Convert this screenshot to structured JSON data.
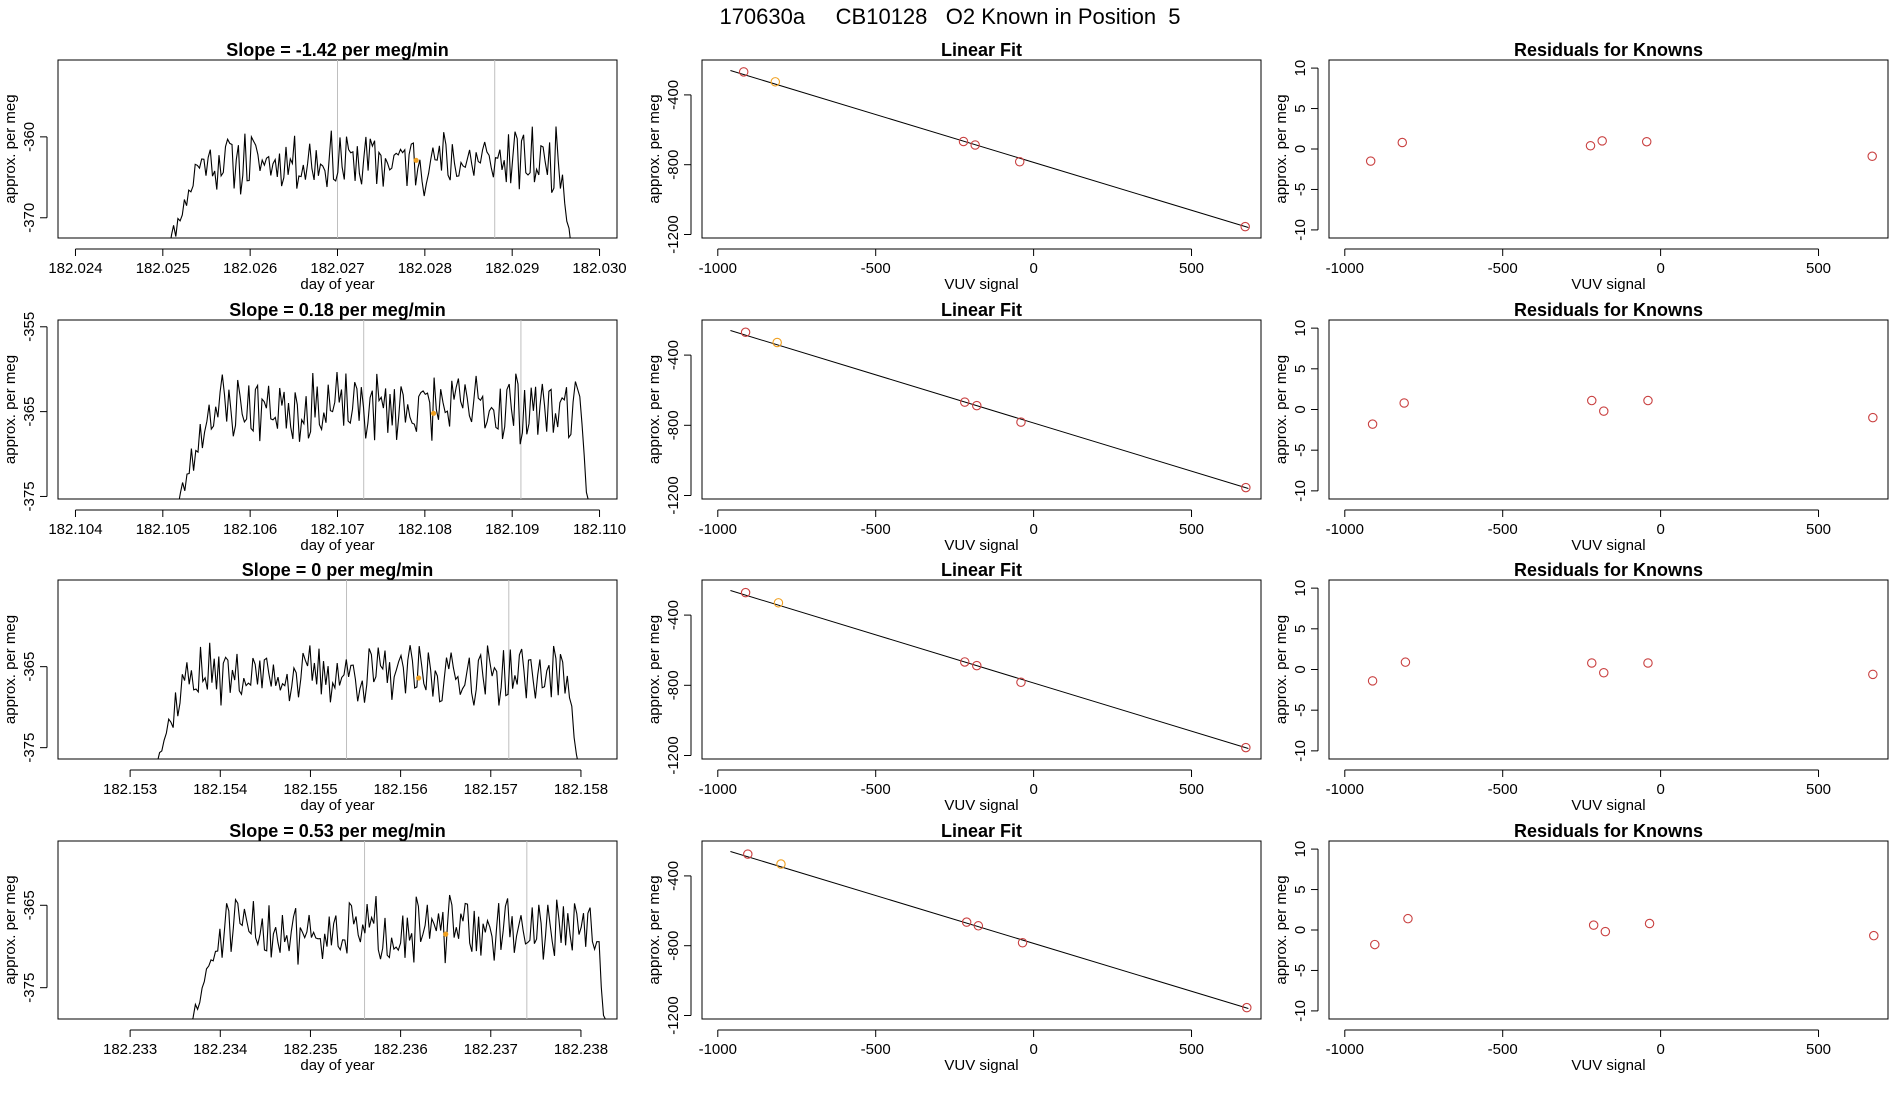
{
  "page": {
    "title": "170630a     CB10128   O2 Known in Position  5"
  },
  "chart_data": [
    {
      "type": "line",
      "title": "Slope =  -1.42  per meg/min",
      "xlabel": "day of year",
      "ylabel": "approx. per meg",
      "xlim": [
        182.0238,
        182.0302
      ],
      "ylim": [
        -372.5,
        -350.5
      ],
      "xticks": [
        182.024,
        182.025,
        182.026,
        182.027,
        182.028,
        182.029,
        182.03
      ],
      "xtick_labels": [
        "182.024",
        "182.025",
        "182.026",
        "182.027",
        "182.028",
        "182.029",
        "182.030"
      ],
      "yticks": [
        -370,
        -360
      ],
      "ytick_labels": [
        "-370",
        "-360"
      ],
      "x_start": 182.025,
      "x_end": 182.0297,
      "y_base": -363.0,
      "noise": 3.2,
      "vlines": [
        182.027,
        182.0288
      ],
      "marker": {
        "x": 182.0279,
        "y": -362.9
      },
      "seed": 11
    },
    {
      "type": "scatter",
      "title": "Linear Fit",
      "xlabel": "VUV signal",
      "ylabel": "approx. per meg",
      "xlim": [
        -1050,
        720
      ],
      "ylim": [
        -1220,
        -200
      ],
      "xticks": [
        -1000,
        -500,
        0,
        500
      ],
      "xtick_labels": [
        "-1000",
        "-500",
        "0",
        "500"
      ],
      "yticks": [
        -400,
        -800,
        -1200
      ],
      "ytick_labels": [
        "-400",
        "-800",
        "-1200"
      ],
      "fit_line": {
        "x": [
          -960,
          680
        ],
        "y": [
          -260,
          -1160
        ]
      },
      "points_x": [
        -918,
        -818,
        -222,
        -185,
        -44,
        670
      ],
      "points_y": [
        -268,
        -325,
        -667,
        -687,
        -783,
        -1155
      ],
      "highlight_index": 1
    },
    {
      "type": "scatter",
      "title": "Residuals for Knowns",
      "xlabel": "VUV signal",
      "ylabel": "approx. per meg",
      "xlim": [
        -1050,
        720
      ],
      "ylim": [
        -11,
        11
      ],
      "xticks": [
        -1000,
        -500,
        0,
        500
      ],
      "xtick_labels": [
        "-1000",
        "-500",
        "0",
        "500"
      ],
      "yticks": [
        10,
        5,
        0,
        -5,
        -10
      ],
      "ytick_labels": [
        "10",
        "5",
        "0",
        "-5",
        "-10"
      ],
      "points_x": [
        -918,
        -818,
        -222,
        -185,
        -44,
        670
      ],
      "points_y": [
        -1.5,
        0.8,
        0.4,
        1.0,
        0.9,
        -0.9
      ]
    },
    {
      "type": "line",
      "title": "Slope =  0.18  per meg/min",
      "xlabel": "day of year",
      "ylabel": "approx. per meg",
      "xlim": [
        182.1038,
        182.1102
      ],
      "ylim": [
        -375.3,
        -354.2
      ],
      "xticks": [
        182.104,
        182.105,
        182.106,
        182.107,
        182.108,
        182.109,
        182.11
      ],
      "xtick_labels": [
        "182.104",
        "182.105",
        "182.106",
        "182.107",
        "182.108",
        "182.109",
        "182.110"
      ],
      "yticks": [
        -375,
        -365,
        -355
      ],
      "ytick_labels": [
        "-375",
        "-365",
        "-355"
      ],
      "x_start": 182.1051,
      "x_end": 182.1099,
      "y_base": -364.5,
      "noise": 3.4,
      "vlines": [
        182.1073,
        182.1091
      ],
      "marker": {
        "x": 182.1081,
        "y": -365.2
      },
      "seed": 23
    },
    {
      "type": "scatter",
      "title": "Linear Fit",
      "xlabel": "VUV signal",
      "ylabel": "approx. per meg",
      "xlim": [
        -1050,
        720
      ],
      "ylim": [
        -1220,
        -200
      ],
      "xticks": [
        -1000,
        -500,
        0,
        500
      ],
      "xtick_labels": [
        "-1000",
        "-500",
        "0",
        "500"
      ],
      "yticks": [
        -400,
        -800,
        -1200
      ],
      "ytick_labels": [
        "-400",
        "-800",
        "-1200"
      ],
      "fit_line": {
        "x": [
          -960,
          680
        ],
        "y": [
          -260,
          -1160
        ]
      },
      "points_x": [
        -912,
        -812,
        -218,
        -180,
        -40,
        672
      ],
      "points_y": [
        -270,
        -328,
        -668,
        -688,
        -782,
        -1155
      ],
      "highlight_index": 1
    },
    {
      "type": "scatter",
      "title": "Residuals for Knowns",
      "xlabel": "VUV signal",
      "ylabel": "approx. per meg",
      "xlim": [
        -1050,
        720
      ],
      "ylim": [
        -11,
        11
      ],
      "xticks": [
        -1000,
        -500,
        0,
        500
      ],
      "xtick_labels": [
        "-1000",
        "-500",
        "0",
        "500"
      ],
      "yticks": [
        10,
        5,
        0,
        -5,
        -10
      ],
      "ytick_labels": [
        "10",
        "5",
        "0",
        "-5",
        "-10"
      ],
      "points_x": [
        -912,
        -812,
        -218,
        -180,
        -40,
        672
      ],
      "points_y": [
        -1.8,
        0.8,
        1.1,
        -0.2,
        1.1,
        -1.0
      ]
    },
    {
      "type": "line",
      "title": "Slope =  0  per meg/min",
      "xlabel": "day of year",
      "ylabel": "approx. per meg",
      "xlim": [
        182.1522,
        182.1584
      ],
      "ylim": [
        -376.4,
        -354.3
      ],
      "xticks": [
        182.153,
        182.154,
        182.155,
        182.156,
        182.157,
        182.158
      ],
      "xtick_labels": [
        "182.153",
        "182.154",
        "182.155",
        "182.156",
        "182.157",
        "182.158"
      ],
      "yticks": [
        -375,
        -365
      ],
      "ytick_labels": [
        "-375",
        "-365"
      ],
      "x_start": 182.1532,
      "x_end": 182.158,
      "y_base": -366.0,
      "noise": 3.0,
      "vlines": [
        182.1554,
        182.1572
      ],
      "marker": {
        "x": 182.1562,
        "y": -366.4
      },
      "seed": 37
    },
    {
      "type": "scatter",
      "title": "Linear Fit",
      "xlabel": "VUV signal",
      "ylabel": "approx. per meg",
      "xlim": [
        -1050,
        720
      ],
      "ylim": [
        -1220,
        -200
      ],
      "xticks": [
        -1000,
        -500,
        0,
        500
      ],
      "xtick_labels": [
        "-1000",
        "-500",
        "0",
        "500"
      ],
      "yticks": [
        -400,
        -800,
        -1200
      ],
      "ytick_labels": [
        "-400",
        "-800",
        "-1200"
      ],
      "fit_line": {
        "x": [
          -960,
          680
        ],
        "y": [
          -260,
          -1160
        ]
      },
      "points_x": [
        -912,
        -808,
        -218,
        -180,
        -40,
        672
      ],
      "points_y": [
        -272,
        -330,
        -667,
        -688,
        -783,
        -1155
      ],
      "highlight_index": 1
    },
    {
      "type": "scatter",
      "title": "Residuals for Knowns",
      "xlabel": "VUV signal",
      "ylabel": "approx. per meg",
      "xlim": [
        -1050,
        720
      ],
      "ylim": [
        -11,
        11
      ],
      "xticks": [
        -1000,
        -500,
        0,
        500
      ],
      "xtick_labels": [
        "-1000",
        "-500",
        "0",
        "500"
      ],
      "yticks": [
        10,
        5,
        0,
        -5,
        -10
      ],
      "ytick_labels": [
        "10",
        "5",
        "0",
        "-5",
        "-10"
      ],
      "points_x": [
        -912,
        -808,
        -218,
        -180,
        -40,
        672
      ],
      "points_y": [
        -1.4,
        0.9,
        0.8,
        -0.4,
        0.8,
        -0.6
      ]
    },
    {
      "type": "line",
      "title": "Slope =  0.53  per meg/min",
      "xlabel": "day of year",
      "ylabel": "approx. per meg",
      "xlim": [
        182.2322,
        182.2384
      ],
      "ylim": [
        -378.8,
        -357.2
      ],
      "xticks": [
        182.233,
        182.234,
        182.235,
        182.236,
        182.237,
        182.238
      ],
      "xtick_labels": [
        "182.233",
        "182.234",
        "182.235",
        "182.236",
        "182.237",
        "182.238"
      ],
      "yticks": [
        -375,
        -365
      ],
      "ytick_labels": [
        "-375",
        "-365"
      ],
      "x_start": 182.2336,
      "x_end": 182.2383,
      "y_base": -368.0,
      "noise": 3.2,
      "vlines": [
        182.2356,
        182.2374
      ],
      "marker": {
        "x": 182.2365,
        "y": -368.5
      },
      "seed": 51
    },
    {
      "type": "scatter",
      "title": "Linear Fit",
      "xlabel": "VUV signal",
      "ylabel": "approx. per meg",
      "xlim": [
        -1050,
        720
      ],
      "ylim": [
        -1220,
        -200
      ],
      "xticks": [
        -1000,
        -500,
        0,
        500
      ],
      "xtick_labels": [
        "-1000",
        "-500",
        "0",
        "500"
      ],
      "yticks": [
        -400,
        -800,
        -1200
      ],
      "ytick_labels": [
        "-400",
        "-800",
        "-1200"
      ],
      "fit_line": {
        "x": [
          -960,
          680
        ],
        "y": [
          -260,
          -1160
        ]
      },
      "points_x": [
        -905,
        -800,
        -212,
        -175,
        -35,
        675
      ],
      "points_y": [
        -275,
        -332,
        -665,
        -686,
        -783,
        -1155
      ],
      "highlight_index": 1
    },
    {
      "type": "scatter",
      "title": "Residuals for Knowns",
      "xlabel": "VUV signal",
      "ylabel": "approx. per meg",
      "xlim": [
        -1050,
        720
      ],
      "ylim": [
        -11,
        11
      ],
      "xticks": [
        -1000,
        -500,
        0,
        500
      ],
      "xtick_labels": [
        "-1000",
        "-500",
        "0",
        "500"
      ],
      "yticks": [
        10,
        5,
        0,
        -5,
        -10
      ],
      "ytick_labels": [
        "10",
        "5",
        "0",
        "-5",
        "-10"
      ],
      "points_x": [
        -905,
        -800,
        -212,
        -175,
        -35,
        675
      ],
      "points_y": [
        -1.8,
        1.4,
        0.6,
        -0.2,
        0.8,
        -0.7
      ]
    }
  ],
  "colors": {
    "line": "#000000",
    "vline": "#bfbfbf",
    "point": "#c94040",
    "highlight": "#f0a020",
    "axis": "#000000"
  }
}
